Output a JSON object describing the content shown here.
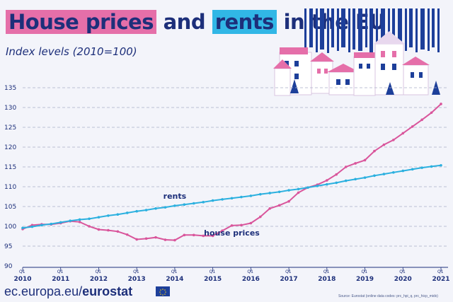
{
  "header": {
    "title_part1": "House prices",
    "title_part2": "and",
    "title_part3": "rents",
    "title_part4": "in the EU",
    "subtitle": "Index levels (2010=100)"
  },
  "footer": {
    "url_prefix": "ec.europa.eu/",
    "url_brand": "eurostat",
    "source": "Source: Eurostat (online data codes: prc_hpi_q, prc_hicp_midx)"
  },
  "colors": {
    "house_prices": "#d9559b",
    "rents": "#2bb0df",
    "axis_text": "#1d2f7a",
    "grid": "#a9afc8"
  },
  "chart_data": {
    "type": "line",
    "ylim": [
      90,
      135
    ],
    "yticks": [
      90,
      95,
      100,
      105,
      110,
      115,
      120,
      125,
      130,
      135
    ],
    "x_labels": [
      "2010",
      "2011",
      "2012",
      "2013",
      "2014",
      "2015",
      "2016",
      "2017",
      "2018",
      "2019",
      "2020",
      "2021"
    ],
    "quarter_label": "Q1",
    "series": [
      {
        "name": "house prices",
        "values": [
          99.3,
          100.3,
          100.5,
          100.5,
          100.8,
          101.3,
          101.1,
          100.0,
          99.2,
          99.0,
          98.7,
          97.9,
          96.7,
          96.9,
          97.2,
          96.6,
          96.5,
          97.8,
          97.8,
          97.6,
          97.6,
          98.9,
          100.2,
          100.3,
          100.8,
          102.4,
          104.5,
          105.3,
          106.3,
          108.5,
          109.8,
          110.5,
          111.6,
          113.1,
          115.0,
          115.9,
          116.7,
          119.0,
          120.6,
          121.8,
          123.5,
          125.2,
          126.9,
          128.7,
          130.9
        ]
      },
      {
        "name": "rents",
        "values": [
          99.6,
          99.9,
          100.3,
          100.6,
          101.0,
          101.4,
          101.7,
          101.9,
          102.3,
          102.7,
          103.0,
          103.4,
          103.8,
          104.1,
          104.5,
          104.8,
          105.2,
          105.5,
          105.8,
          106.1,
          106.5,
          106.8,
          107.1,
          107.4,
          107.7,
          108.1,
          108.4,
          108.7,
          109.1,
          109.4,
          109.8,
          110.2,
          110.6,
          111.0,
          111.5,
          111.9,
          112.3,
          112.8,
          113.2,
          113.6,
          114.0,
          114.4,
          114.8,
          115.1,
          115.4
        ]
      }
    ],
    "annotations": [
      {
        "text": "rents",
        "series": "rents"
      },
      {
        "text": "house prices",
        "series": "house prices"
      }
    ],
    "grid": true
  }
}
